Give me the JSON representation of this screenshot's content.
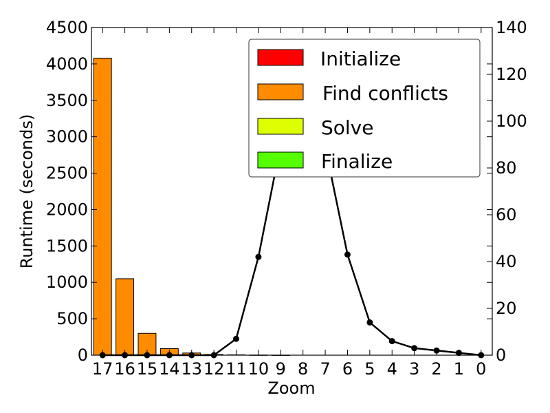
{
  "chart_data": {
    "type": "bar",
    "title": "",
    "xlabel": "Zoom",
    "ylabel": "Runtime (seconds)",
    "ylim": [
      0,
      4500
    ],
    "y2lim": [
      0,
      140
    ],
    "yticks": [
      0,
      500,
      1000,
      1500,
      2000,
      2500,
      3000,
      3500,
      4000,
      4500
    ],
    "y2ticks": [
      0,
      20,
      40,
      60,
      80,
      100,
      120,
      140
    ],
    "categories": [
      "17",
      "16",
      "15",
      "14",
      "13",
      "12",
      "11",
      "10",
      "9",
      "8",
      "7",
      "6",
      "5",
      "4",
      "3",
      "2",
      "1",
      "0"
    ],
    "series": [
      {
        "name": "Initialize",
        "color": "#ff0000",
        "values": [
          0,
          0,
          0,
          0,
          0,
          0,
          0,
          0,
          0,
          0,
          0,
          0,
          0,
          0,
          0,
          0,
          0,
          0
        ]
      },
      {
        "name": "Find conflicts",
        "color": "#ff8c00",
        "values": [
          4080,
          1050,
          300,
          90,
          30,
          10,
          5,
          2,
          1,
          0,
          0,
          0,
          0,
          0,
          0,
          0,
          0,
          0
        ]
      },
      {
        "name": "Solve",
        "color": "#ddff00",
        "values": [
          0,
          0,
          0,
          0,
          0,
          0,
          0,
          0,
          0,
          0,
          0,
          0,
          0,
          0,
          0,
          0,
          0,
          0
        ]
      },
      {
        "name": "Finalize",
        "color": "#55ff00",
        "values": [
          0,
          0,
          0,
          0,
          0,
          0,
          0,
          0,
          0,
          0,
          0,
          0,
          0,
          0,
          0,
          0,
          0,
          0
        ]
      }
    ],
    "line_series": {
      "axis": "right",
      "color": "#000000",
      "values": [
        0,
        0,
        0,
        0,
        0,
        0,
        7,
        42,
        90,
        133,
        89,
        43,
        14,
        6,
        3,
        2,
        1,
        0
      ]
    },
    "legend": {
      "placement": "top-right",
      "entries": [
        "Initialize",
        "Find conflicts",
        "Solve",
        "Finalize"
      ]
    },
    "grid": false
  }
}
